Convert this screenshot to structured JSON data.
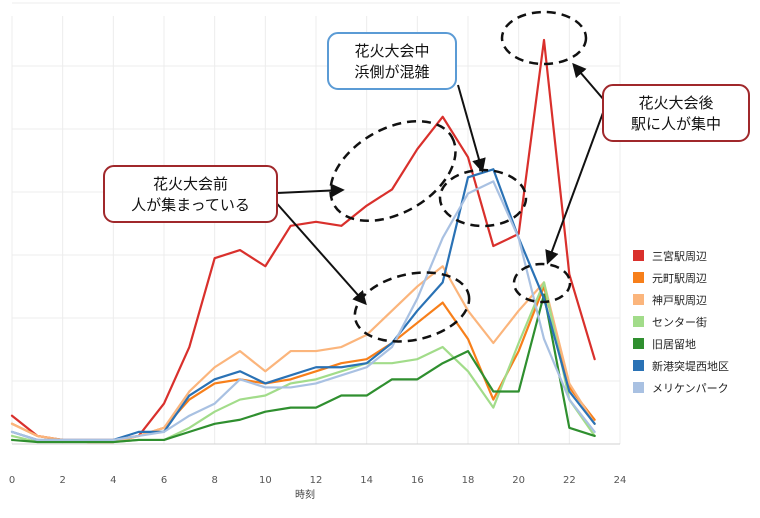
{
  "chart_data": {
    "type": "line",
    "xlabel": "時刻",
    "ylabel": "",
    "xlim": [
      0,
      24
    ],
    "xticks": [
      0,
      2,
      4,
      6,
      8,
      10,
      12,
      14,
      16,
      18,
      20,
      22,
      24
    ],
    "ylim": [
      0,
      100
    ],
    "grid": true,
    "legend": "right",
    "x": [
      0,
      1,
      2,
      3,
      4,
      5,
      6,
      7,
      8,
      9,
      10,
      11,
      12,
      13,
      14,
      15,
      16,
      17,
      18,
      19,
      20,
      21,
      22,
      23
    ],
    "series": [
      {
        "name": "三宮駅周辺",
        "color": "#d9302c",
        "values": [
          7,
          2,
          1,
          1,
          1,
          2,
          10,
          24,
          46,
          48,
          44,
          54,
          55,
          54,
          59,
          63,
          73,
          81,
          71,
          49,
          52,
          100,
          42,
          21
        ]
      },
      {
        "name": "元町駅周辺",
        "color": "#f77f1a",
        "values": [
          5,
          2,
          1,
          0.5,
          0.5,
          2,
          4,
          11,
          15,
          16,
          15,
          16,
          18,
          20,
          21,
          25,
          30,
          35,
          26,
          11,
          23,
          39,
          14,
          6
        ]
      },
      {
        "name": "神戸駅周辺",
        "color": "#fbb57c",
        "values": [
          5,
          2,
          1,
          0.5,
          0.5,
          2,
          4,
          13,
          19,
          23,
          18,
          23,
          23,
          24,
          27,
          33,
          39,
          44,
          33,
          25,
          33,
          40,
          15,
          5
        ]
      },
      {
        "name": "センター街",
        "color": "#a2dc8a",
        "values": [
          2,
          0.5,
          0.5,
          0.5,
          0.5,
          1,
          1,
          4,
          8,
          11,
          12,
          15,
          16,
          18,
          20,
          20,
          21,
          24,
          18,
          9,
          25,
          40,
          11,
          2
        ]
      },
      {
        "name": "旧居留地",
        "color": "#2f8f2f",
        "values": [
          1,
          0.5,
          0.5,
          0.5,
          0.5,
          1,
          1,
          3,
          5,
          6,
          8,
          9,
          9,
          12,
          12,
          16,
          16,
          20,
          23,
          13,
          13,
          37,
          4,
          2
        ]
      },
      {
        "name": "新港突堤西地区",
        "color": "#2a72b5",
        "values": [
          3,
          1,
          1,
          1,
          1,
          3,
          3,
          12,
          16,
          18,
          15,
          17,
          19,
          19,
          20,
          25,
          33,
          40,
          66,
          68,
          51,
          36,
          13,
          5
        ]
      },
      {
        "name": "メリケンパーク",
        "color": "#a9c1e2",
        "values": [
          3,
          1,
          1,
          1,
          1,
          2,
          3,
          7,
          10,
          16,
          14,
          14,
          15,
          17,
          19,
          24,
          36,
          51,
          62,
          65,
          51,
          26,
          11,
          3
        ]
      }
    ],
    "annotations": [
      {
        "text": "花火大会中",
        "text2": "浜側が混雑",
        "color": "#5b9bd5"
      },
      {
        "text": "花火大会前",
        "text2": "人が集まっている",
        "color": "#a0282b"
      },
      {
        "text": "花火大会後",
        "text2": "駅に人が集中",
        "color": "#a0282b"
      }
    ]
  }
}
